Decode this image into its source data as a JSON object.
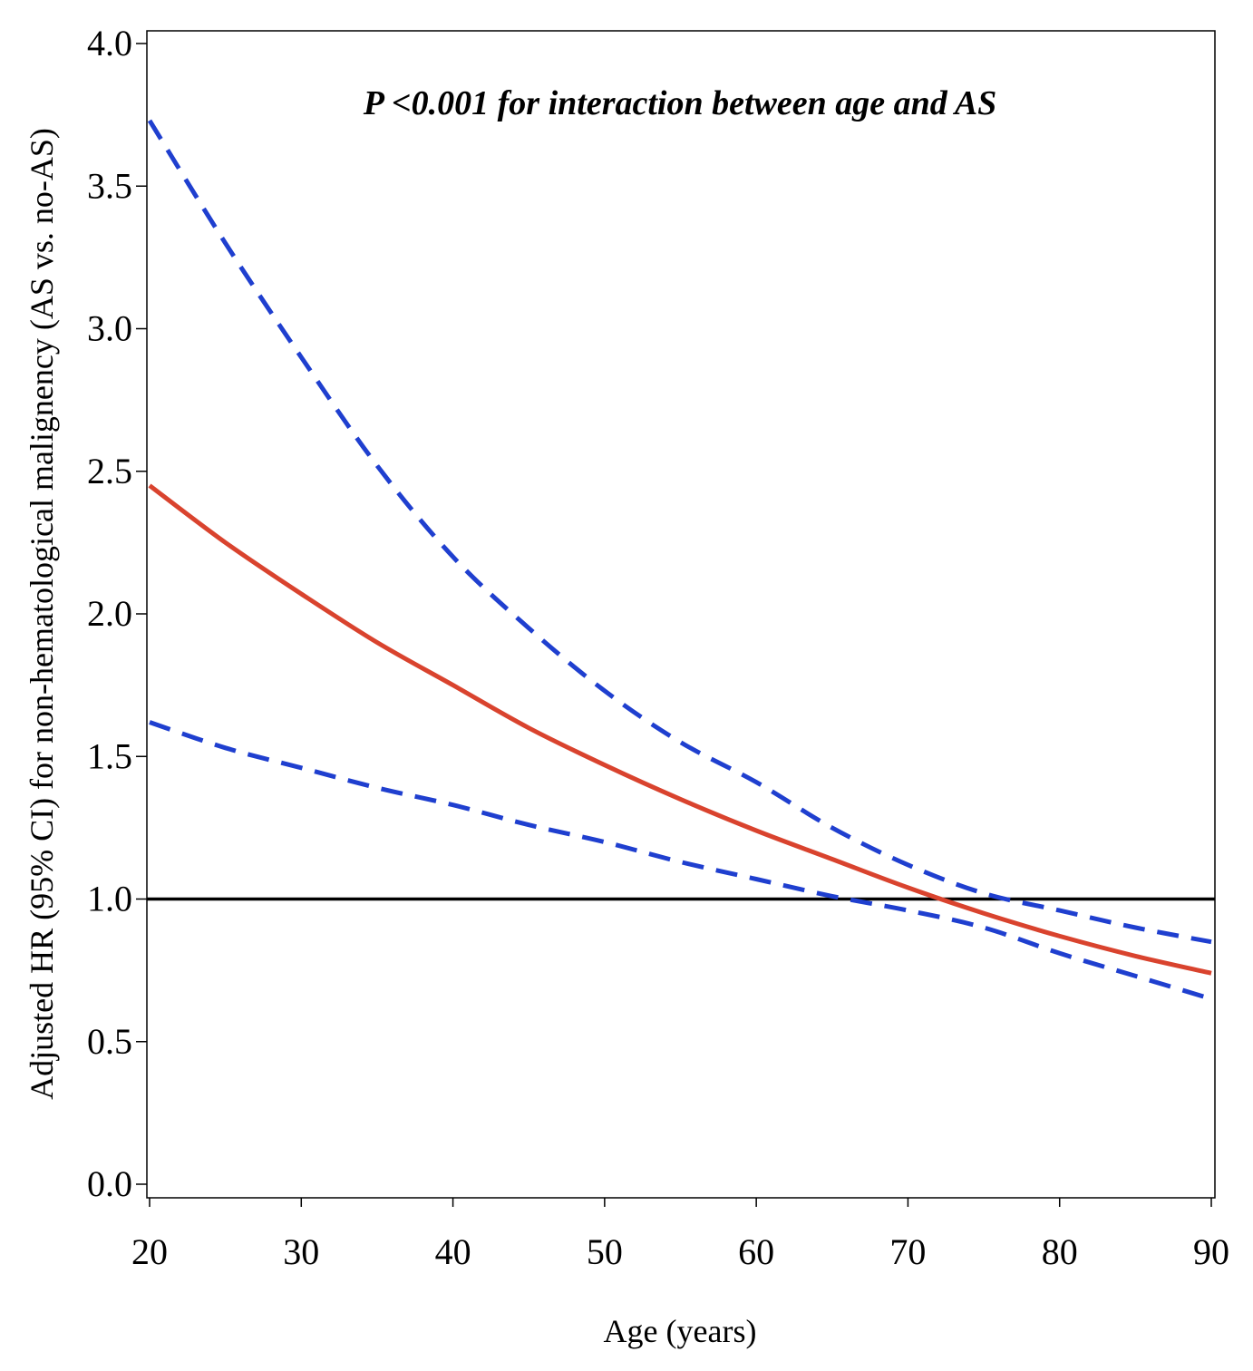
{
  "chart_data": {
    "type": "line",
    "annotation": "P <0.001 for interaction between age and AS",
    "xlabel": "Age (years)",
    "ylabel": "Adjusted HR (95% CI) for non-hematological malignency (AS vs. no-AS)",
    "xlim": [
      20,
      90
    ],
    "ylim": [
      0.0,
      4.0
    ],
    "x_ticks": [
      "20",
      "30",
      "40",
      "50",
      "60",
      "70",
      "80",
      "90"
    ],
    "y_ticks": [
      "0.0",
      "0.5",
      "1.0",
      "1.5",
      "2.0",
      "2.5",
      "3.0",
      "3.5",
      "4.0"
    ],
    "reference_line": {
      "y": 1.0,
      "color": "#000000"
    },
    "grid": false,
    "x": [
      20,
      25,
      30,
      35,
      40,
      45,
      50,
      55,
      60,
      65,
      70,
      75,
      80,
      85,
      90
    ],
    "series": [
      {
        "role": "hr",
        "style": "solid",
        "color": "#d9432e",
        "values": [
          2.45,
          2.25,
          2.07,
          1.9,
          1.75,
          1.6,
          1.47,
          1.35,
          1.24,
          1.14,
          1.04,
          0.95,
          0.87,
          0.8,
          0.74
        ]
      },
      {
        "role": "ci-upper",
        "style": "dashed",
        "color": "#1f3fcf",
        "values": [
          3.73,
          3.3,
          2.9,
          2.52,
          2.2,
          1.95,
          1.73,
          1.55,
          1.41,
          1.25,
          1.12,
          1.02,
          0.96,
          0.9,
          0.85
        ]
      },
      {
        "role": "ci-lower",
        "style": "dashed",
        "color": "#1f3fcf",
        "values": [
          1.62,
          1.53,
          1.46,
          1.39,
          1.33,
          1.26,
          1.2,
          1.13,
          1.07,
          1.01,
          0.96,
          0.9,
          0.81,
          0.73,
          0.65
        ]
      }
    ]
  }
}
